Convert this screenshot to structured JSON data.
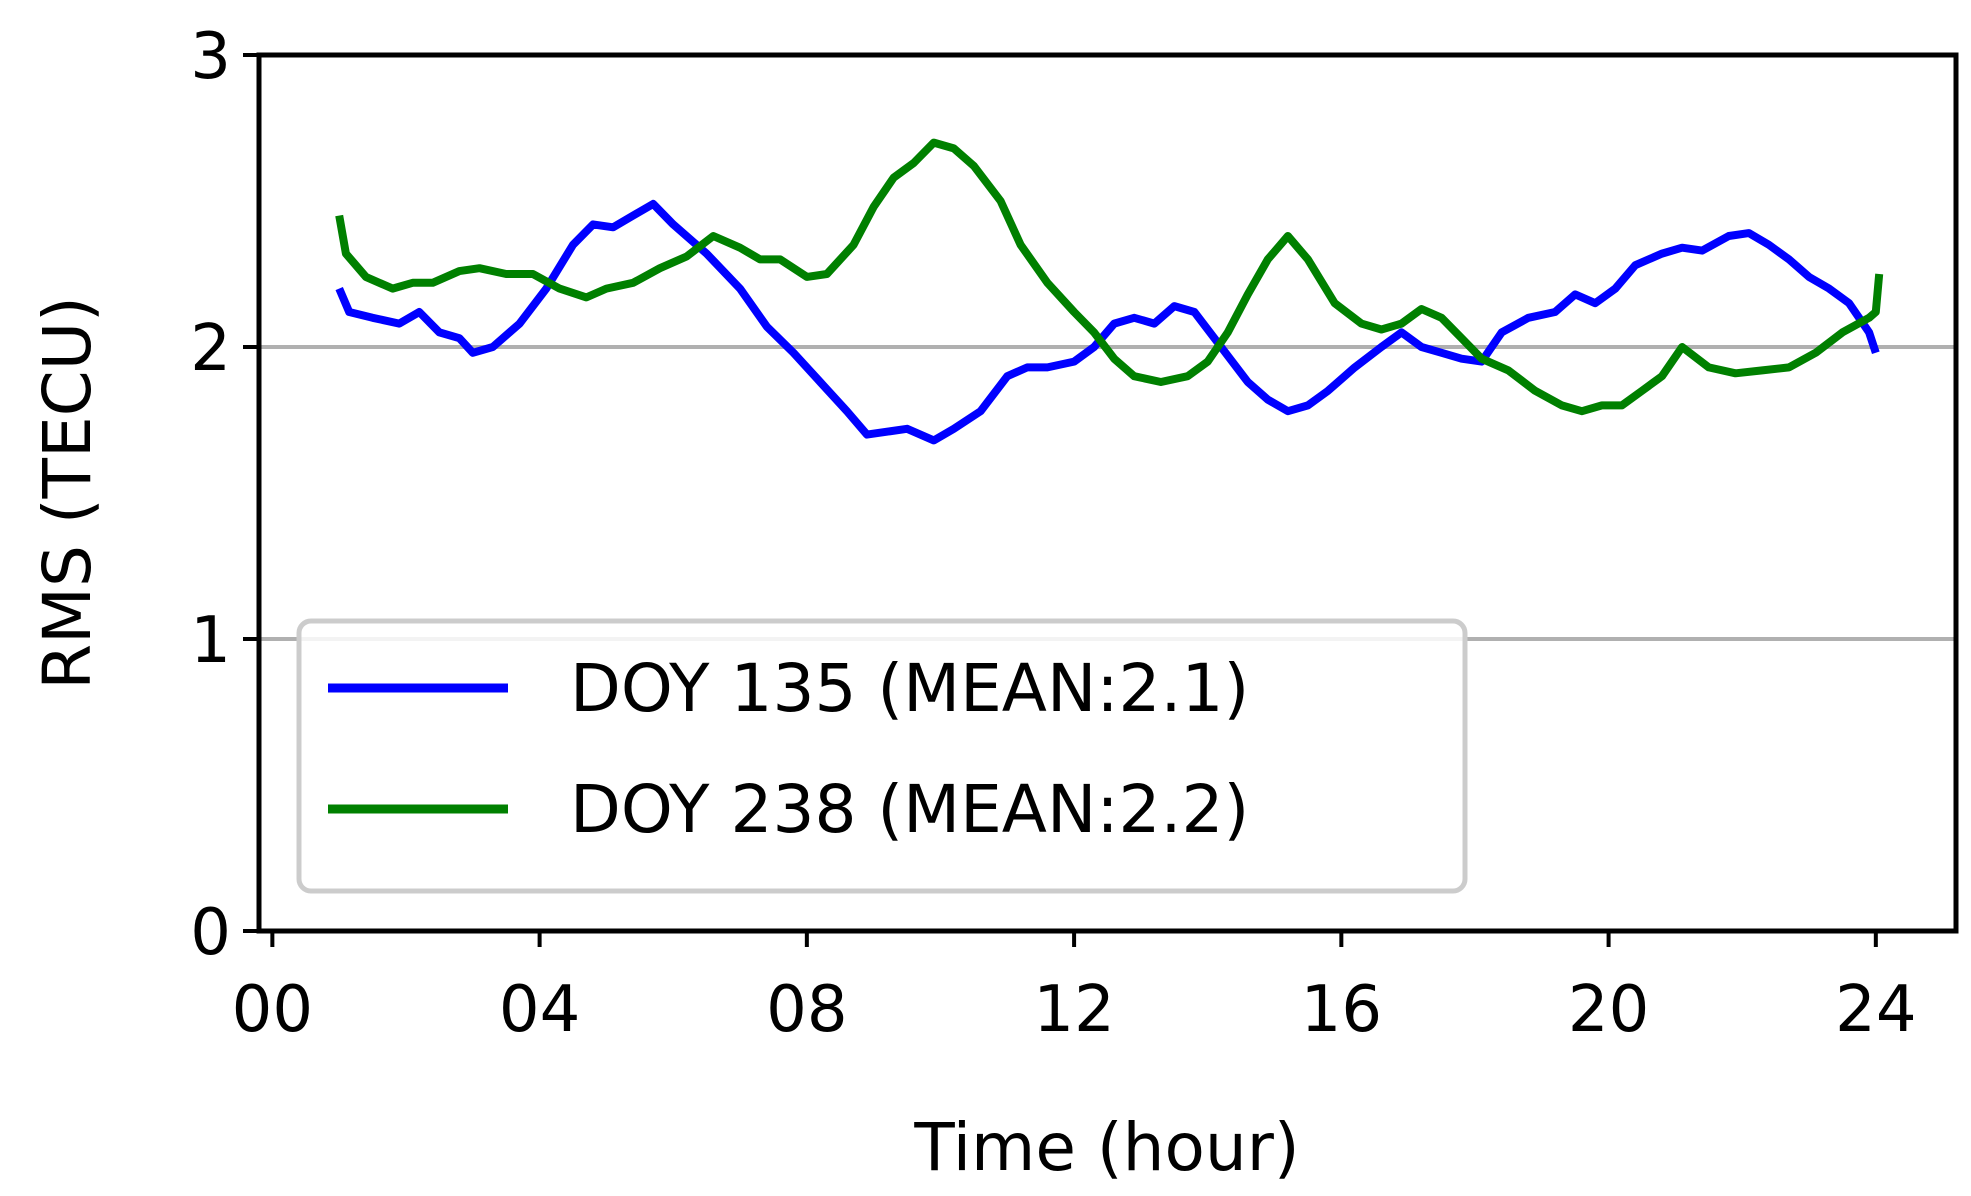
{
  "chart_data": {
    "type": "line",
    "xlabel": "Time (hour)",
    "ylabel": "RMS (TECU)",
    "xlim": [
      -0.2,
      25.2
    ],
    "ylim": [
      0,
      3
    ],
    "xticks": [
      0,
      4,
      8,
      12,
      16,
      20,
      24
    ],
    "xtick_labels": [
      "00",
      "04",
      "08",
      "12",
      "16",
      "20",
      "24"
    ],
    "yticks": [
      0,
      1,
      2,
      3
    ],
    "ytick_labels": [
      "0",
      "1",
      "2",
      "3"
    ],
    "grid_y": [
      1,
      2
    ],
    "legend_position": "lower-left",
    "series": [
      {
        "name": "DOY 135 (MEAN:2.1)",
        "color": "#0000ff",
        "x": [
          1.0,
          1.15,
          1.5,
          1.9,
          2.2,
          2.5,
          2.8,
          3.0,
          3.3,
          3.7,
          4.1,
          4.5,
          4.8,
          5.1,
          5.4,
          5.7,
          6.0,
          6.5,
          7.0,
          7.4,
          7.8,
          8.2,
          8.6,
          8.9,
          9.2,
          9.5,
          9.9,
          10.2,
          10.6,
          11.0,
          11.3,
          11.6,
          12.0,
          12.3,
          12.6,
          12.9,
          13.2,
          13.5,
          13.8,
          14.2,
          14.6,
          14.9,
          15.2,
          15.5,
          15.8,
          16.2,
          16.6,
          16.9,
          17.2,
          17.5,
          17.8,
          18.1,
          18.4,
          18.8,
          19.2,
          19.5,
          19.8,
          20.1,
          20.4,
          20.8,
          21.1,
          21.4,
          21.8,
          22.1,
          22.4,
          22.7,
          23.0,
          23.3,
          23.6,
          23.9,
          24.0
        ],
        "values": [
          2.2,
          2.12,
          2.1,
          2.08,
          2.12,
          2.05,
          2.03,
          1.98,
          2.0,
          2.08,
          2.2,
          2.35,
          2.42,
          2.41,
          2.45,
          2.49,
          2.42,
          2.32,
          2.2,
          2.07,
          1.98,
          1.88,
          1.78,
          1.7,
          1.71,
          1.72,
          1.68,
          1.72,
          1.78,
          1.9,
          1.93,
          1.93,
          1.95,
          2.0,
          2.08,
          2.1,
          2.08,
          2.14,
          2.12,
          2.0,
          1.88,
          1.82,
          1.78,
          1.8,
          1.85,
          1.93,
          2.0,
          2.05,
          2.0,
          1.98,
          1.96,
          1.95,
          2.05,
          2.1,
          2.12,
          2.18,
          2.15,
          2.2,
          2.28,
          2.32,
          2.34,
          2.33,
          2.38,
          2.39,
          2.35,
          2.3,
          2.24,
          2.2,
          2.15,
          2.05,
          1.98
        ]
      },
      {
        "name": "DOY 238 (MEAN:2.2)",
        "color": "#008000",
        "x": [
          1.0,
          1.1,
          1.4,
          1.8,
          2.1,
          2.4,
          2.8,
          3.1,
          3.5,
          3.9,
          4.3,
          4.7,
          5.0,
          5.4,
          5.8,
          6.2,
          6.6,
          7.0,
          7.3,
          7.6,
          8.0,
          8.3,
          8.7,
          9.0,
          9.3,
          9.6,
          9.9,
          10.2,
          10.5,
          10.9,
          11.2,
          11.6,
          12.0,
          12.3,
          12.6,
          12.9,
          13.3,
          13.7,
          14.0,
          14.3,
          14.6,
          14.9,
          15.2,
          15.5,
          15.9,
          16.3,
          16.6,
          16.9,
          17.2,
          17.5,
          17.8,
          18.1,
          18.5,
          18.9,
          19.3,
          19.6,
          19.9,
          20.2,
          20.5,
          20.8,
          21.1,
          21.5,
          21.9,
          22.3,
          22.7,
          23.1,
          23.5,
          23.9,
          24.0,
          24.05
        ],
        "values": [
          2.45,
          2.32,
          2.24,
          2.2,
          2.22,
          2.22,
          2.26,
          2.27,
          2.25,
          2.25,
          2.2,
          2.17,
          2.2,
          2.22,
          2.27,
          2.31,
          2.38,
          2.34,
          2.3,
          2.3,
          2.24,
          2.25,
          2.35,
          2.48,
          2.58,
          2.63,
          2.7,
          2.68,
          2.62,
          2.5,
          2.35,
          2.22,
          2.12,
          2.05,
          1.96,
          1.9,
          1.88,
          1.9,
          1.95,
          2.05,
          2.18,
          2.3,
          2.38,
          2.3,
          2.15,
          2.08,
          2.06,
          2.08,
          2.13,
          2.1,
          2.03,
          1.96,
          1.92,
          1.85,
          1.8,
          1.78,
          1.8,
          1.8,
          1.85,
          1.9,
          2.0,
          1.93,
          1.91,
          1.92,
          1.93,
          1.98,
          2.05,
          2.1,
          2.12,
          2.25
        ]
      }
    ]
  }
}
